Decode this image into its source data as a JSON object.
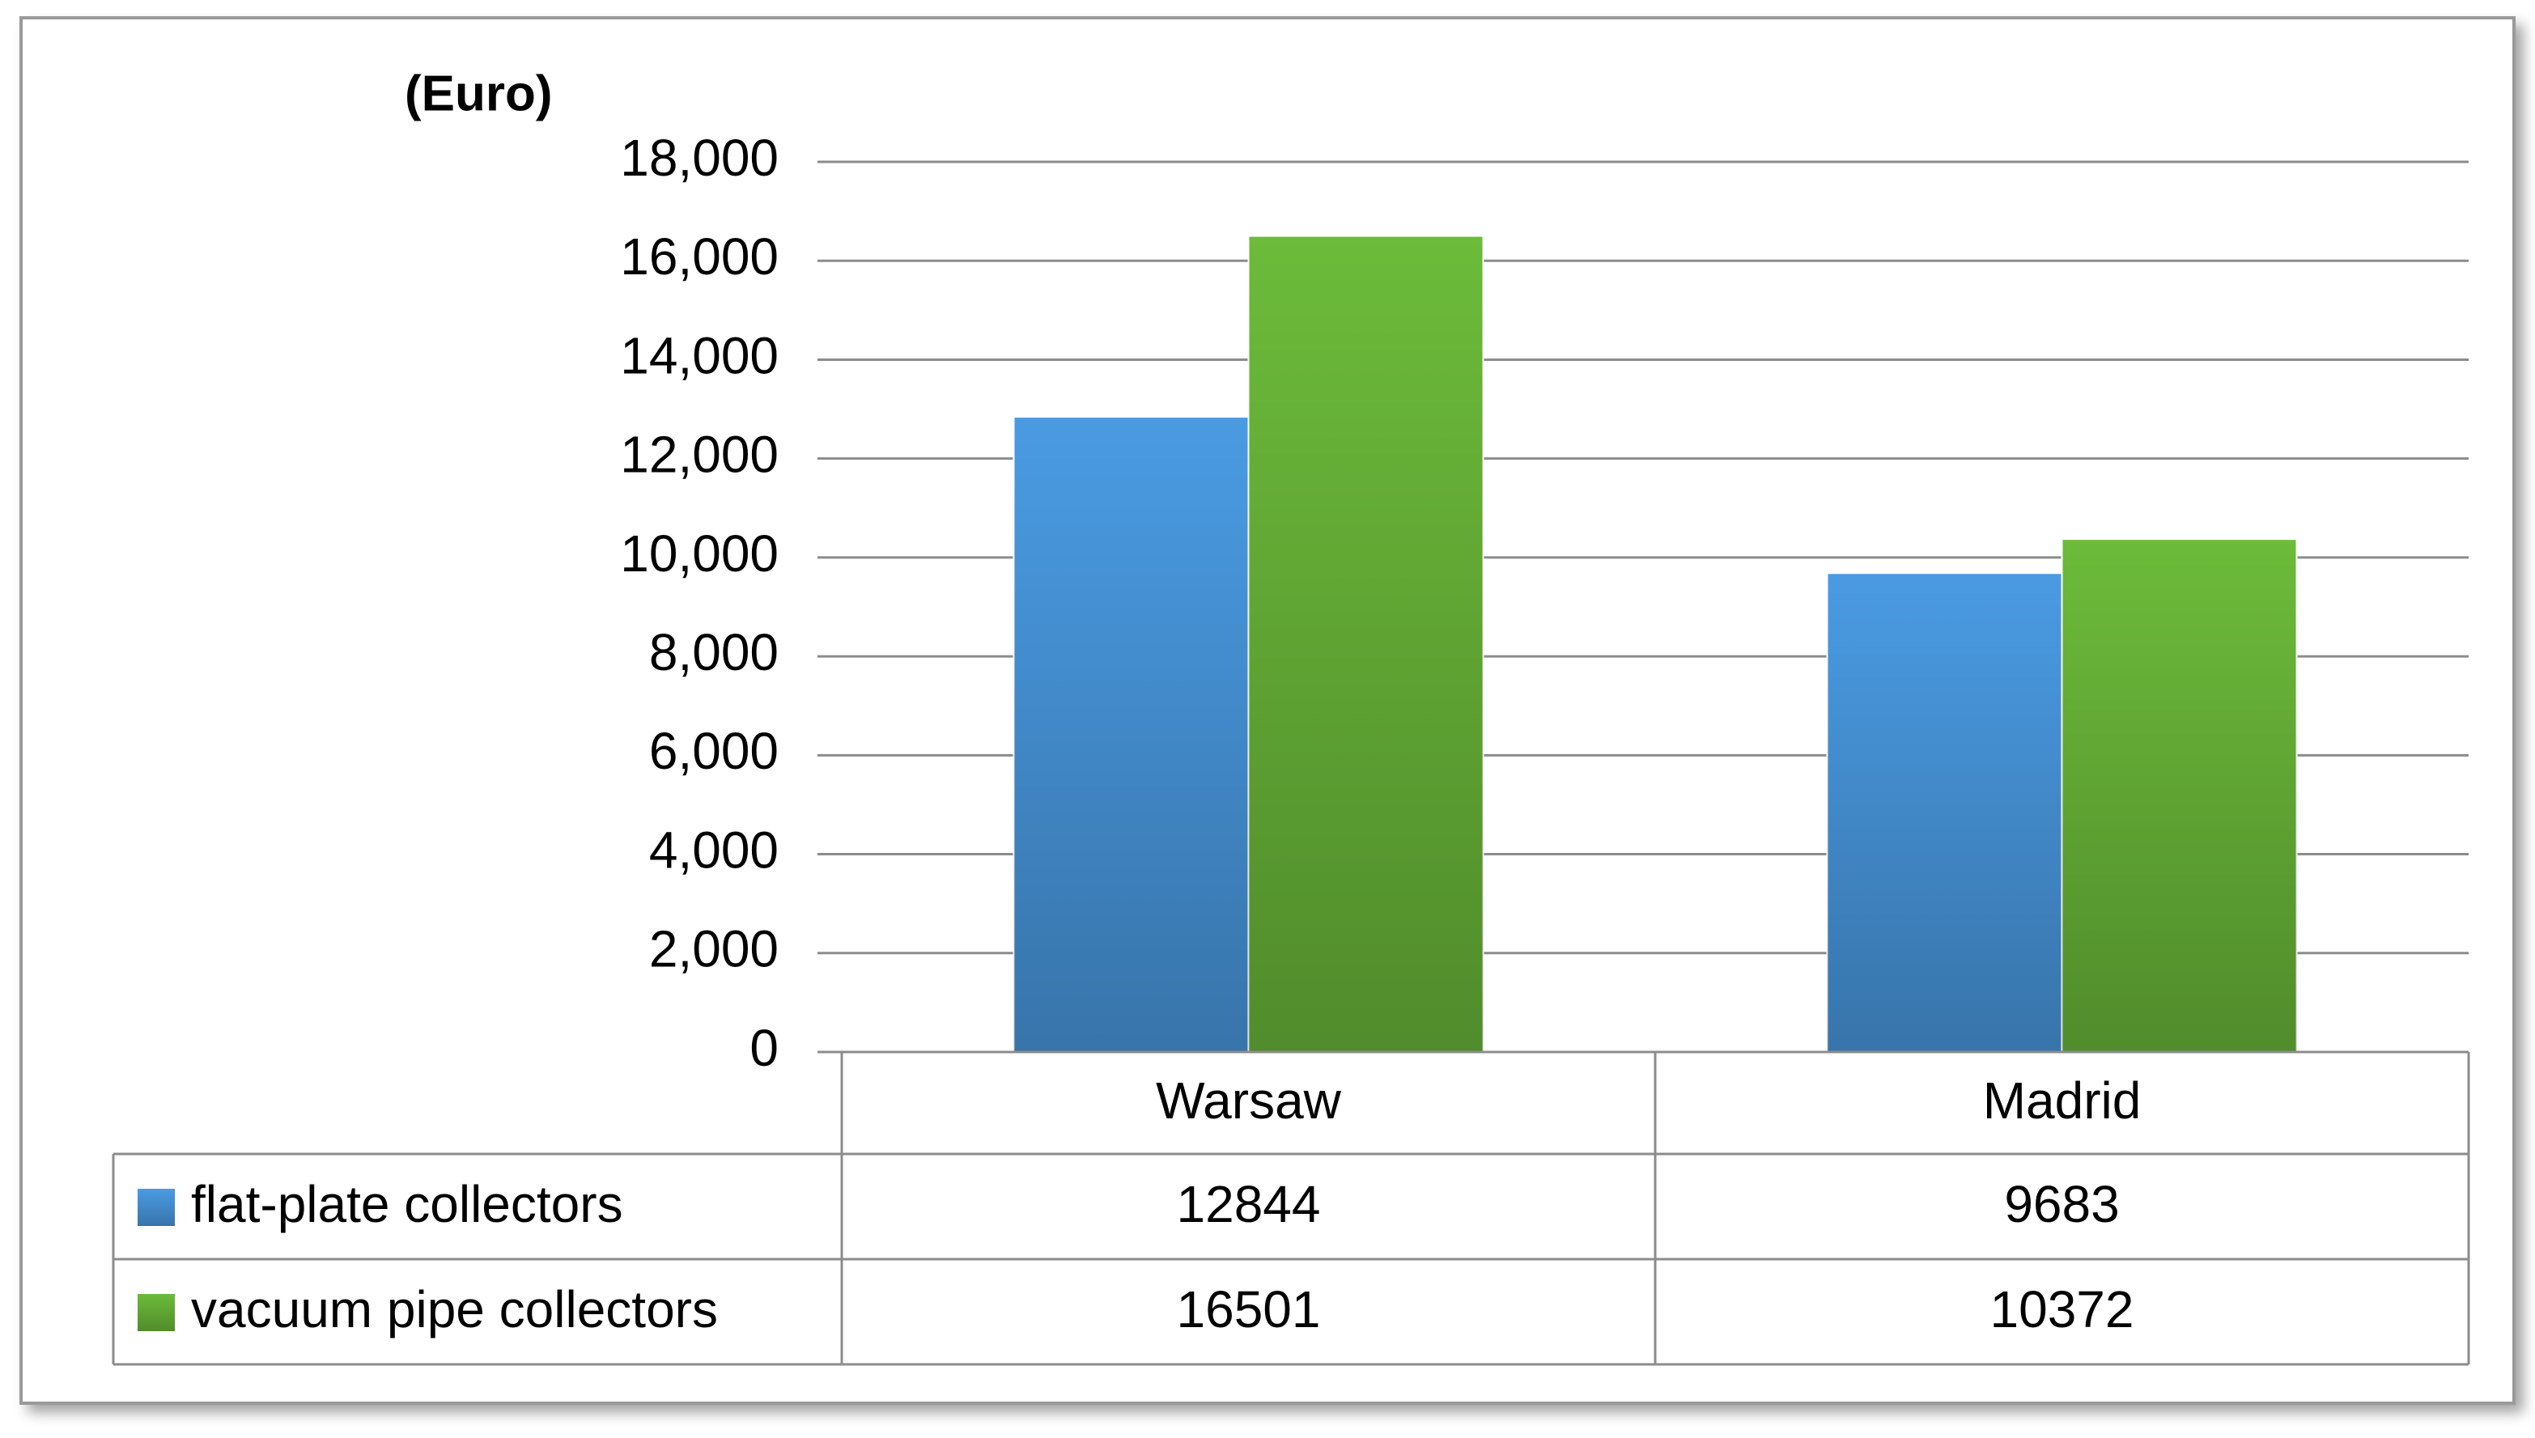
{
  "chart_data": {
    "type": "bar",
    "y_label": "(Euro)",
    "categories": [
      "Warsaw",
      "Madrid"
    ],
    "series": [
      {
        "name": "flat-plate collectors",
        "color": "#4a9be3",
        "values": [
          12844,
          9683
        ]
      },
      {
        "name": "vacuum pipe collectors",
        "color": "#6cbb3a",
        "values": [
          16501,
          10372
        ]
      }
    ],
    "ylim": [
      0,
      18000
    ],
    "yticks": [
      0,
      {
        "value": 2000,
        "label": "2,000"
      },
      {
        "value": 4000,
        "label": "4,000"
      },
      {
        "value": 6000,
        "label": "6,000"
      },
      {
        "value": 8000,
        "label": "8,000"
      },
      {
        "value": 10000,
        "label": "10,000"
      },
      {
        "value": 12000,
        "label": "12,000"
      },
      {
        "value": 14000,
        "label": "14,000"
      },
      {
        "value": 16000,
        "label": "16,000"
      },
      {
        "value": 18000,
        "label": "18,000"
      }
    ],
    "grid": true,
    "data_table": true
  }
}
